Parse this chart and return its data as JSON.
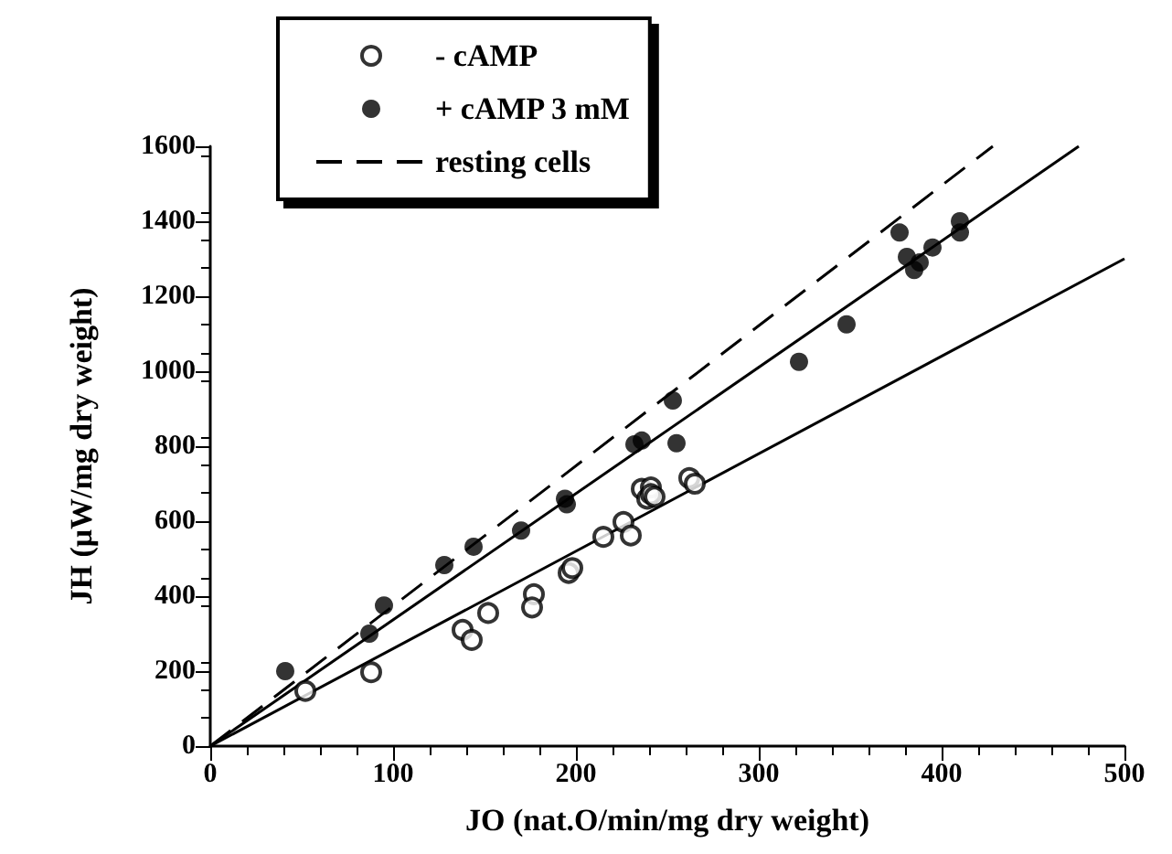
{
  "chart_data": {
    "type": "scatter",
    "xlabel": "JO (nat.O/min/mg dry weight)",
    "ylabel": "JH (μW/mg dry weight)",
    "xlim": [
      0,
      500
    ],
    "xticks": [
      0,
      100,
      200,
      300,
      400,
      500
    ],
    "ylim": [
      0,
      1600
    ],
    "yticks": [
      0,
      200,
      400,
      600,
      800,
      1000,
      1200,
      1400,
      1600
    ],
    "grid": false,
    "legend": "top left",
    "marker": "circle",
    "series": [
      {
        "name": "- cAMP",
        "color": "#000000",
        "x": [
          52,
          88,
          138,
          143,
          152,
          177,
          176,
          196,
          198,
          215,
          226,
          230,
          236,
          239,
          241,
          241,
          243,
          262,
          265
        ],
        "values": [
          147,
          197,
          310,
          283,
          355,
          405,
          370,
          462,
          475,
          558,
          598,
          562,
          686,
          660,
          690,
          672,
          665,
          715,
          700
        ]
      },
      {
        "name": "+ cAMP 3 mM",
        "color": "#000000",
        "x": [
          41,
          87,
          95,
          128,
          144,
          170,
          194,
          195,
          232,
          236,
          253,
          255,
          322,
          348,
          377,
          381,
          385,
          388,
          395,
          410,
          410
        ],
        "values": [
          200,
          300,
          375,
          483,
          532,
          575,
          660,
          645,
          805,
          815,
          922,
          808,
          1025,
          1125,
          1370,
          1305,
          1270,
          1290,
          1330,
          1400,
          1370
        ]
      },
      {
        "type": "line",
        "color": "#000000",
        "line_style": "solid",
        "marker": "none",
        "x": [
          0,
          500
        ],
        "values": [
          0,
          1300
        ]
      },
      {
        "type": "line",
        "color": "#000000",
        "line_style": "solid",
        "marker": "none",
        "x": [
          0,
          475
        ],
        "values": [
          0,
          1600
        ]
      },
      {
        "type": "line",
        "name": "resting cells",
        "color": "#000000",
        "line_style": "dashed",
        "marker": "none",
        "x": [
          0,
          428
        ],
        "values": [
          0,
          1600
        ]
      }
    ]
  }
}
